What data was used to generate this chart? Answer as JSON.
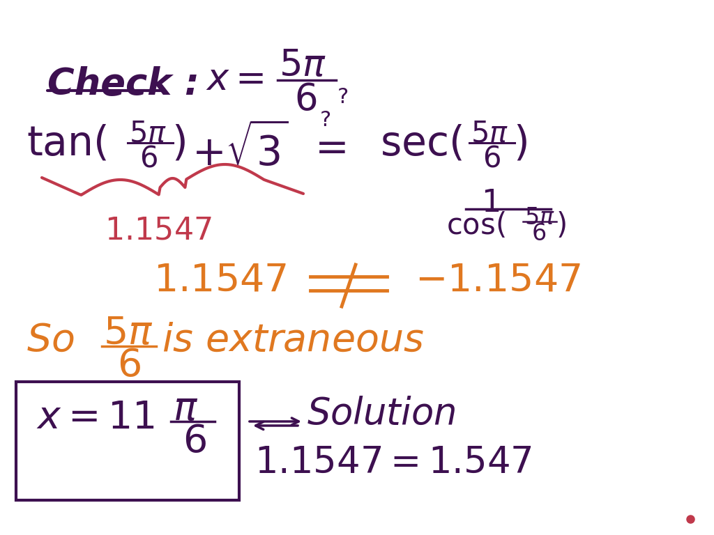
{
  "background_color": "#ffffff",
  "dark_color": "#3d1050",
  "red_color": "#c0394b",
  "orange_color": "#e07820",
  "fig_width": 10.24,
  "fig_height": 7.68,
  "dpi": 100
}
